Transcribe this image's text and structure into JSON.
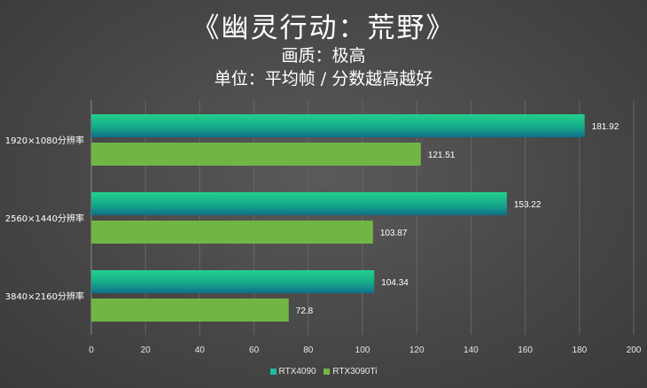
{
  "title": "《幽灵行动：荒野》",
  "subtitle1": "画质：极高",
  "subtitle2": "单位：平均帧 / 分数越高越好",
  "colors": {
    "series1": "#1fb8a0",
    "series2": "#72b545"
  },
  "chart_data": {
    "type": "bar",
    "orientation": "horizontal",
    "categories": [
      "1920×1080分辨率",
      "2560×1440分辨率",
      "3840×2160分辨率"
    ],
    "series": [
      {
        "name": "RTX4090",
        "values": [
          181.92,
          153.22,
          104.34
        ]
      },
      {
        "name": "RTX3090Ti",
        "values": [
          121.51,
          103.87,
          72.8
        ]
      }
    ],
    "value_labels": [
      [
        "181.92",
        "153.22",
        "104.34"
      ],
      [
        "121.51",
        "103.87",
        "72.8"
      ]
    ],
    "xlim": [
      0,
      200
    ],
    "xticks": [
      0,
      20,
      40,
      60,
      80,
      100,
      120,
      140,
      160,
      180,
      200
    ],
    "grid": "vertical",
    "legend": "bottom"
  }
}
